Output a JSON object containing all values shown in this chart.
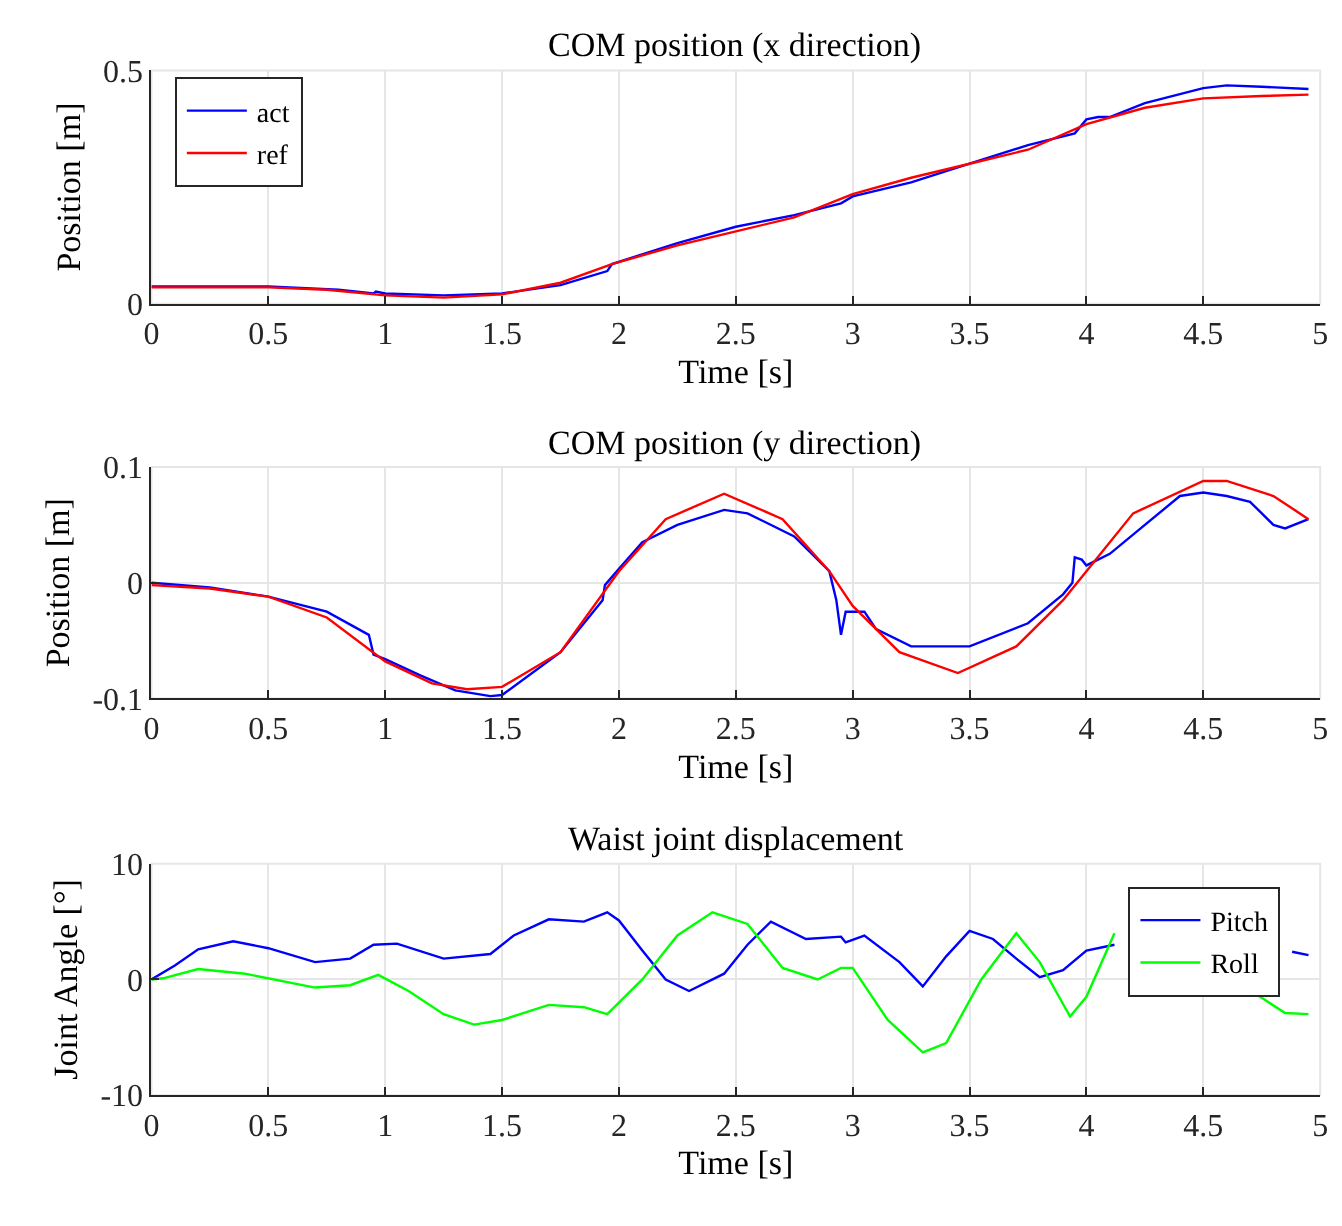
{
  "chart_data": [
    {
      "type": "line",
      "title": "COM position (x direction)",
      "xlabel": "Time [s]",
      "ylabel": "Position [m]",
      "xlim": [
        0,
        5
      ],
      "xticks": [
        0,
        0.5,
        1,
        1.5,
        2,
        2.5,
        3,
        3.5,
        4,
        4.5,
        5
      ],
      "ylim": [
        0,
        0.5
      ],
      "yticks": [
        0,
        0.5
      ],
      "grid": true,
      "legend": "top left",
      "series": [
        {
          "name": "act",
          "color": "#0000ff",
          "x": [
            0,
            0.5,
            0.8,
            0.95,
            0.96,
            1.0,
            1.25,
            1.5,
            1.75,
            1.95,
            1.97,
            2.25,
            2.5,
            2.75,
            2.95,
            3.0,
            3.25,
            3.5,
            3.75,
            3.95,
            4.0,
            4.05,
            4.1,
            4.25,
            4.5,
            4.6,
            4.75,
            4.95
          ],
          "values": [
            0.037,
            0.037,
            0.03,
            0.022,
            0.026,
            0.022,
            0.018,
            0.022,
            0.04,
            0.07,
            0.085,
            0.13,
            0.165,
            0.19,
            0.215,
            0.23,
            0.26,
            0.3,
            0.34,
            0.365,
            0.395,
            0.4,
            0.4,
            0.43,
            0.462,
            0.468,
            0.465,
            0.46
          ]
        },
        {
          "name": "ref",
          "color": "#ff0000",
          "x": [
            0,
            0.5,
            0.75,
            1.0,
            1.25,
            1.5,
            1.75,
            1.97,
            2.25,
            2.5,
            2.75,
            3.0,
            3.25,
            3.5,
            3.75,
            4.0,
            4.25,
            4.5,
            4.75,
            4.95
          ],
          "values": [
            0.035,
            0.035,
            0.03,
            0.018,
            0.013,
            0.02,
            0.045,
            0.085,
            0.125,
            0.155,
            0.185,
            0.235,
            0.27,
            0.3,
            0.33,
            0.385,
            0.42,
            0.44,
            0.445,
            0.448
          ]
        }
      ]
    },
    {
      "type": "line",
      "title": "COM position (y direction)",
      "xlabel": "Time [s]",
      "ylabel": "Position [m]",
      "xlim": [
        0,
        5
      ],
      "xticks": [
        0,
        0.5,
        1,
        1.5,
        2,
        2.5,
        3,
        3.5,
        4,
        4.5,
        5
      ],
      "ylim": [
        -0.1,
        0.1
      ],
      "yticks": [
        -0.1,
        0,
        0.1
      ],
      "grid": true,
      "legend": false,
      "series": [
        {
          "color": "#0000ff",
          "x": [
            0,
            0.25,
            0.5,
            0.75,
            0.93,
            0.95,
            1.0,
            1.15,
            1.3,
            1.45,
            1.5,
            1.75,
            1.93,
            1.94,
            2.0,
            2.1,
            2.25,
            2.45,
            2.55,
            2.75,
            2.9,
            2.93,
            2.95,
            2.97,
            3.05,
            3.1,
            3.25,
            3.4,
            3.5,
            3.75,
            3.9,
            3.94,
            3.95,
            3.98,
            4.0,
            4.1,
            4.25,
            4.4,
            4.5,
            4.6,
            4.7,
            4.8,
            4.85,
            4.95
          ],
          "values": [
            0.0,
            -0.004,
            -0.012,
            -0.025,
            -0.045,
            -0.062,
            -0.066,
            -0.08,
            -0.093,
            -0.098,
            -0.097,
            -0.06,
            -0.015,
            -0.002,
            0.012,
            0.035,
            0.05,
            0.063,
            0.06,
            0.04,
            0.01,
            -0.015,
            -0.045,
            -0.025,
            -0.025,
            -0.04,
            -0.055,
            -0.055,
            -0.055,
            -0.035,
            -0.01,
            0.0,
            0.022,
            0.02,
            0.015,
            0.025,
            0.05,
            0.075,
            0.078,
            0.075,
            0.07,
            0.05,
            0.047,
            0.055
          ]
        },
        {
          "color": "#ff0000",
          "x": [
            0,
            0.25,
            0.5,
            0.75,
            1.0,
            1.2,
            1.35,
            1.5,
            1.75,
            2.0,
            2.2,
            2.45,
            2.7,
            2.9,
            3.0,
            3.2,
            3.45,
            3.7,
            3.9,
            4.0,
            4.2,
            4.5,
            4.6,
            4.8,
            4.95
          ],
          "values": [
            -0.002,
            -0.005,
            -0.012,
            -0.03,
            -0.068,
            -0.087,
            -0.092,
            -0.09,
            -0.06,
            0.01,
            0.055,
            0.077,
            0.055,
            0.01,
            -0.02,
            -0.06,
            -0.078,
            -0.055,
            -0.015,
            0.01,
            0.06,
            0.088,
            0.088,
            0.075,
            0.055
          ]
        }
      ]
    },
    {
      "type": "line",
      "title": "Waist joint displacement",
      "xlabel": "Time [s]",
      "ylabel": "Joint Angle [°]",
      "xlim": [
        0,
        5
      ],
      "xticks": [
        0,
        0.5,
        1,
        1.5,
        2,
        2.5,
        3,
        3.5,
        4,
        4.5,
        5
      ],
      "ylim": [
        -10,
        10
      ],
      "yticks": [
        -10,
        0,
        10
      ],
      "grid": true,
      "legend": "top right",
      "series": [
        {
          "name": "Pitch",
          "color": "#0000ff",
          "x": [
            0,
            0.1,
            0.2,
            0.35,
            0.5,
            0.7,
            0.85,
            0.95,
            1.05,
            1.25,
            1.45,
            1.55,
            1.7,
            1.85,
            1.95,
            2.0,
            2.1,
            2.2,
            2.3,
            2.45,
            2.55,
            2.65,
            2.8,
            2.95,
            2.97,
            3.05,
            3.2,
            3.3,
            3.4,
            3.5,
            3.6,
            3.7,
            3.8,
            3.9,
            4.0,
            4.12,
            4.5,
            4.88,
            4.95
          ],
          "values": [
            0,
            1.2,
            2.6,
            3.3,
            2.7,
            1.5,
            1.8,
            3.0,
            3.1,
            1.8,
            2.2,
            3.8,
            5.2,
            5.0,
            5.8,
            5.1,
            2.5,
            0.0,
            -1.0,
            0.5,
            3.0,
            5.0,
            3.5,
            3.7,
            3.2,
            3.8,
            1.5,
            -0.6,
            2.0,
            4.2,
            3.5,
            1.8,
            0.2,
            0.8,
            2.5,
            3.0,
            null,
            2.4,
            2.1
          ]
        },
        {
          "name": "Roll",
          "color": "#00ff00",
          "x": [
            0,
            0.05,
            0.2,
            0.4,
            0.7,
            0.85,
            0.97,
            1.1,
            1.25,
            1.38,
            1.5,
            1.7,
            1.85,
            1.95,
            2.1,
            2.25,
            2.4,
            2.55,
            2.7,
            2.85,
            2.95,
            3.0,
            3.15,
            3.3,
            3.4,
            3.55,
            3.7,
            3.8,
            3.93,
            4.0,
            4.12,
            4.4,
            4.72,
            4.85,
            4.95
          ],
          "values": [
            0,
            0.1,
            0.9,
            0.5,
            -0.7,
            -0.5,
            0.4,
            -1.0,
            -3.0,
            -3.9,
            -3.5,
            -2.2,
            -2.4,
            -3.0,
            0.0,
            3.8,
            5.8,
            4.8,
            1.0,
            0.0,
            1.0,
            1.0,
            -3.5,
            -6.3,
            -5.5,
            0.0,
            4.0,
            1.5,
            -3.2,
            -1.5,
            4.0,
            null,
            -1.2,
            -2.9,
            -3.0
          ]
        }
      ]
    }
  ]
}
